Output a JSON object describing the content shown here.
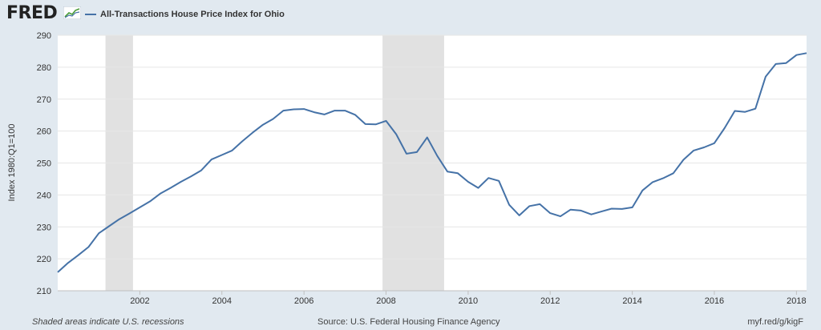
{
  "header": {
    "logo": "FRED",
    "logo_icon": "trend-graph-icon"
  },
  "colors": {
    "background": "#e1e9f0",
    "plot_background": "#ffffff",
    "series_line": "#4572a7",
    "recession_shade": "#e1e1e1",
    "grid": "#e6e6e6"
  },
  "footer": {
    "note": "Shaded areas indicate U.S. recessions",
    "source": "Source: U.S. Federal Housing Finance Agency",
    "link": "myf.red/g/kigF"
  },
  "chart_data": {
    "type": "line",
    "title": "",
    "xlabel": "",
    "ylabel": "Index 1980:Q1=100",
    "ylim": [
      210,
      290
    ],
    "yticks": [
      210,
      220,
      230,
      240,
      250,
      260,
      270,
      280,
      290
    ],
    "xlim": [
      "2000-01-01",
      "2018-04-01"
    ],
    "xtick_labels": [
      "2002",
      "2004",
      "2006",
      "2008",
      "2010",
      "2012",
      "2014",
      "2016",
      "2018"
    ],
    "grid": true,
    "legend_position": "top-left",
    "recessions": [
      {
        "start": "2001-03-01",
        "end": "2001-11-01"
      },
      {
        "start": "2007-12-01",
        "end": "2009-06-01"
      }
    ],
    "series": [
      {
        "name": "All-Transactions House Price Index for Ohio",
        "x": [
          "2000-01-01",
          "2000-04-01",
          "2000-07-01",
          "2000-10-01",
          "2001-01-01",
          "2001-04-01",
          "2001-07-01",
          "2001-10-01",
          "2002-01-01",
          "2002-04-01",
          "2002-07-01",
          "2002-10-01",
          "2003-01-01",
          "2003-04-01",
          "2003-07-01",
          "2003-10-01",
          "2004-01-01",
          "2004-04-01",
          "2004-07-01",
          "2004-10-01",
          "2005-01-01",
          "2005-04-01",
          "2005-07-01",
          "2005-10-01",
          "2006-01-01",
          "2006-04-01",
          "2006-07-01",
          "2006-10-01",
          "2007-01-01",
          "2007-04-01",
          "2007-07-01",
          "2007-10-01",
          "2008-01-01",
          "2008-04-01",
          "2008-07-01",
          "2008-10-01",
          "2009-01-01",
          "2009-04-01",
          "2009-07-01",
          "2009-10-01",
          "2010-01-01",
          "2010-04-01",
          "2010-07-01",
          "2010-10-01",
          "2011-01-01",
          "2011-04-01",
          "2011-07-01",
          "2011-10-01",
          "2012-01-01",
          "2012-04-01",
          "2012-07-01",
          "2012-10-01",
          "2013-01-01",
          "2013-04-01",
          "2013-07-01",
          "2013-10-01",
          "2014-01-01",
          "2014-04-01",
          "2014-07-01",
          "2014-10-01",
          "2015-01-01",
          "2015-04-01",
          "2015-07-01",
          "2015-10-01",
          "2016-01-01",
          "2016-04-01",
          "2016-07-01",
          "2016-10-01",
          "2017-01-01",
          "2017-04-01",
          "2017-07-01",
          "2017-10-01",
          "2018-01-01",
          "2018-04-01"
        ],
        "values": [
          215.8,
          218.7,
          221.1,
          223.7,
          228.0,
          230.2,
          232.4,
          234.2,
          236.1,
          238.0,
          240.4,
          242.2,
          244.1,
          245.8,
          247.7,
          251.1,
          252.5,
          253.9,
          256.8,
          259.5,
          262.0,
          263.8,
          266.4,
          266.8,
          266.9,
          265.9,
          265.2,
          266.4,
          266.4,
          265.1,
          262.2,
          262.1,
          263.2,
          259.0,
          252.9,
          253.4,
          258.0,
          252.2,
          247.3,
          246.8,
          244.1,
          242.2,
          245.3,
          244.4,
          236.9,
          233.6,
          236.5,
          237.1,
          234.3,
          233.3,
          235.4,
          235.1,
          233.9,
          234.8,
          235.7,
          235.6,
          236.1,
          241.4,
          244.0,
          245.2,
          246.8,
          251.0,
          253.9,
          254.9,
          256.2,
          260.9,
          266.3,
          266.0,
          267.0,
          277.0,
          281.0,
          281.3,
          283.8,
          284.4
        ]
      }
    ]
  }
}
